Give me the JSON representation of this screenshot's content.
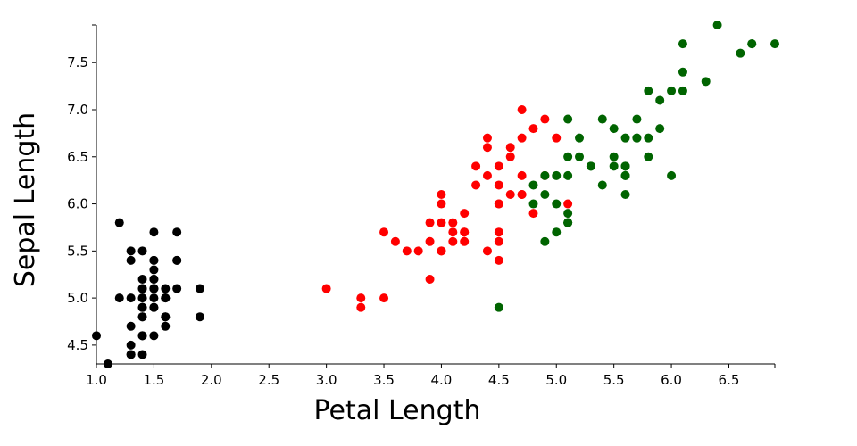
{
  "chart_data": {
    "type": "scatter",
    "xlabel": "Petal Length",
    "ylabel": "Sepal Length",
    "xlim": [
      1.0,
      6.9
    ],
    "ylim": [
      4.3,
      7.9
    ],
    "xticks": [
      "1.0",
      "1.5",
      "2.0",
      "2.5",
      "3.0",
      "3.5",
      "4.0",
      "4.5",
      "5.0",
      "5.5",
      "6.0",
      "6.5"
    ],
    "yticks": [
      "4.5",
      "5.0",
      "5.5",
      "6.0",
      "6.5",
      "7.0",
      "7.5"
    ],
    "grid": false,
    "series": [
      {
        "color": "#000000",
        "points": [
          [
            1.4,
            5.1
          ],
          [
            1.4,
            4.9
          ],
          [
            1.3,
            4.7
          ],
          [
            1.5,
            4.6
          ],
          [
            1.4,
            5.0
          ],
          [
            1.7,
            5.4
          ],
          [
            1.4,
            4.6
          ],
          [
            1.5,
            5.0
          ],
          [
            1.4,
            4.4
          ],
          [
            1.5,
            4.9
          ],
          [
            1.5,
            5.4
          ],
          [
            1.6,
            4.8
          ],
          [
            1.4,
            4.8
          ],
          [
            1.1,
            4.3
          ],
          [
            1.2,
            5.8
          ],
          [
            1.5,
            5.7
          ],
          [
            1.3,
            5.4
          ],
          [
            1.4,
            5.1
          ],
          [
            1.7,
            5.7
          ],
          [
            1.5,
            5.1
          ],
          [
            1.7,
            5.4
          ],
          [
            1.5,
            5.1
          ],
          [
            1.0,
            4.6
          ],
          [
            1.7,
            5.1
          ],
          [
            1.9,
            4.8
          ],
          [
            1.6,
            5.0
          ],
          [
            1.6,
            5.0
          ],
          [
            1.5,
            5.2
          ],
          [
            1.4,
            5.2
          ],
          [
            1.6,
            4.7
          ],
          [
            1.6,
            4.8
          ],
          [
            1.5,
            5.4
          ],
          [
            1.5,
            5.2
          ],
          [
            1.4,
            5.5
          ],
          [
            1.5,
            4.9
          ],
          [
            1.2,
            5.0
          ],
          [
            1.3,
            5.5
          ],
          [
            1.4,
            4.9
          ],
          [
            1.3,
            4.4
          ],
          [
            1.5,
            5.1
          ],
          [
            1.3,
            5.0
          ],
          [
            1.3,
            4.5
          ],
          [
            1.3,
            4.4
          ],
          [
            1.6,
            5.0
          ],
          [
            1.9,
            5.1
          ],
          [
            1.4,
            4.8
          ],
          [
            1.6,
            5.1
          ],
          [
            1.4,
            4.6
          ],
          [
            1.5,
            5.3
          ],
          [
            1.4,
            5.0
          ]
        ]
      },
      {
        "color": "#ff0000",
        "points": [
          [
            4.7,
            7.0
          ],
          [
            4.5,
            6.4
          ],
          [
            4.9,
            6.9
          ],
          [
            4.0,
            5.5
          ],
          [
            4.6,
            6.5
          ],
          [
            4.5,
            5.7
          ],
          [
            4.7,
            6.3
          ],
          [
            3.3,
            4.9
          ],
          [
            4.6,
            6.6
          ],
          [
            3.9,
            5.2
          ],
          [
            3.5,
            5.0
          ],
          [
            4.2,
            5.9
          ],
          [
            4.0,
            6.0
          ],
          [
            4.7,
            6.1
          ],
          [
            3.6,
            5.6
          ],
          [
            4.4,
            6.7
          ],
          [
            4.5,
            5.6
          ],
          [
            4.1,
            5.8
          ],
          [
            4.5,
            6.2
          ],
          [
            3.9,
            5.6
          ],
          [
            4.8,
            5.9
          ],
          [
            4.0,
            6.1
          ],
          [
            4.9,
            6.3
          ],
          [
            4.7,
            6.1
          ],
          [
            4.3,
            6.4
          ],
          [
            4.4,
            6.6
          ],
          [
            4.8,
            6.8
          ],
          [
            5.0,
            6.7
          ],
          [
            4.5,
            6.0
          ],
          [
            3.5,
            5.7
          ],
          [
            3.8,
            5.5
          ],
          [
            3.7,
            5.5
          ],
          [
            3.9,
            5.8
          ],
          [
            5.1,
            6.0
          ],
          [
            4.5,
            5.4
          ],
          [
            4.5,
            6.0
          ],
          [
            4.7,
            6.7
          ],
          [
            4.4,
            6.3
          ],
          [
            4.1,
            5.6
          ],
          [
            4.0,
            5.5
          ],
          [
            4.4,
            5.5
          ],
          [
            4.6,
            6.1
          ],
          [
            4.0,
            5.8
          ],
          [
            3.3,
            5.0
          ],
          [
            4.2,
            5.6
          ],
          [
            4.2,
            5.7
          ],
          [
            4.2,
            5.7
          ],
          [
            4.3,
            6.2
          ],
          [
            3.0,
            5.1
          ],
          [
            4.1,
            5.7
          ]
        ]
      },
      {
        "color": "#006400",
        "points": [
          [
            6.0,
            6.3
          ],
          [
            5.1,
            5.8
          ],
          [
            5.9,
            7.1
          ],
          [
            5.6,
            6.3
          ],
          [
            5.8,
            6.5
          ],
          [
            6.6,
            7.6
          ],
          [
            4.5,
            4.9
          ],
          [
            6.3,
            7.3
          ],
          [
            5.8,
            6.7
          ],
          [
            6.1,
            7.2
          ],
          [
            5.1,
            6.5
          ],
          [
            5.3,
            6.4
          ],
          [
            5.5,
            6.8
          ],
          [
            5.0,
            5.7
          ],
          [
            5.1,
            5.8
          ],
          [
            5.3,
            6.4
          ],
          [
            5.5,
            6.5
          ],
          [
            6.7,
            7.7
          ],
          [
            6.9,
            7.7
          ],
          [
            5.0,
            6.0
          ],
          [
            5.7,
            6.9
          ],
          [
            4.9,
            5.6
          ],
          [
            6.7,
            7.7
          ],
          [
            4.9,
            6.3
          ],
          [
            5.7,
            6.7
          ],
          [
            6.0,
            7.2
          ],
          [
            4.8,
            6.2
          ],
          [
            4.9,
            6.1
          ],
          [
            5.6,
            6.4
          ],
          [
            5.8,
            7.2
          ],
          [
            6.1,
            7.4
          ],
          [
            6.4,
            7.9
          ],
          [
            5.6,
            6.4
          ],
          [
            5.1,
            6.3
          ],
          [
            5.6,
            6.1
          ],
          [
            6.1,
            7.7
          ],
          [
            5.6,
            6.3
          ],
          [
            5.5,
            6.4
          ],
          [
            4.8,
            6.0
          ],
          [
            5.4,
            6.9
          ],
          [
            5.6,
            6.7
          ],
          [
            5.1,
            6.9
          ],
          [
            5.1,
            5.8
          ],
          [
            5.9,
            6.8
          ],
          [
            5.7,
            6.7
          ],
          [
            5.2,
            6.7
          ],
          [
            5.0,
            6.3
          ],
          [
            5.2,
            6.5
          ],
          [
            5.4,
            6.2
          ],
          [
            5.1,
            5.9
          ]
        ]
      }
    ]
  }
}
